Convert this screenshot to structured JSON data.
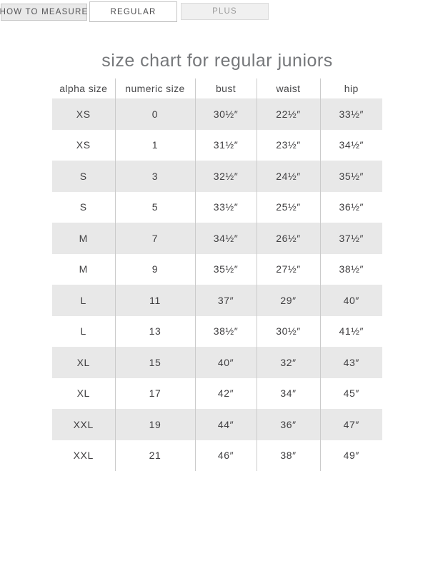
{
  "tabs": [
    {
      "label": "HOW TO MEASURE",
      "active": false
    },
    {
      "label": "REGULAR",
      "active": true
    },
    {
      "label": "PLUS",
      "active": false
    }
  ],
  "title": "size chart for regular juniors",
  "table": {
    "headers": [
      "alpha size",
      "numeric size",
      "bust",
      "waist",
      "hip"
    ],
    "rows": [
      [
        "XS",
        "0",
        "30½″",
        "22½″",
        "33½″"
      ],
      [
        "XS",
        "1",
        "31½″",
        "23½″",
        "34½″"
      ],
      [
        "S",
        "3",
        "32½″",
        "24½″",
        "35½″"
      ],
      [
        "S",
        "5",
        "33½″",
        "25½″",
        "36½″"
      ],
      [
        "M",
        "7",
        "34½″",
        "26½″",
        "37½″"
      ],
      [
        "M",
        "9",
        "35½″",
        "27½″",
        "38½″"
      ],
      [
        "L",
        "11",
        "37″",
        "29″",
        "40″"
      ],
      [
        "L",
        "13",
        "38½″",
        "30½″",
        "41½″"
      ],
      [
        "XL",
        "15",
        "40″",
        "32″",
        "43″"
      ],
      [
        "XL",
        "17",
        "42″",
        "34″",
        "45″"
      ],
      [
        "XXL",
        "19",
        "44″",
        "36″",
        "47″"
      ],
      [
        "XXL",
        "21",
        "46″",
        "38″",
        "49″"
      ]
    ]
  },
  "colors": {
    "row_alt_bg": "#e8e8e8",
    "divider": "#cbcbcb",
    "cell_text": "#414042",
    "title_text": "#75777a",
    "tab_active_bg": "#ffffff",
    "tab_inactive_bg": "#e9e9e9",
    "tab_plus_bg": "#f0f0f0",
    "tab_border": "#c6c6c6",
    "tab_inactive_text": "#9b9b9b"
  }
}
